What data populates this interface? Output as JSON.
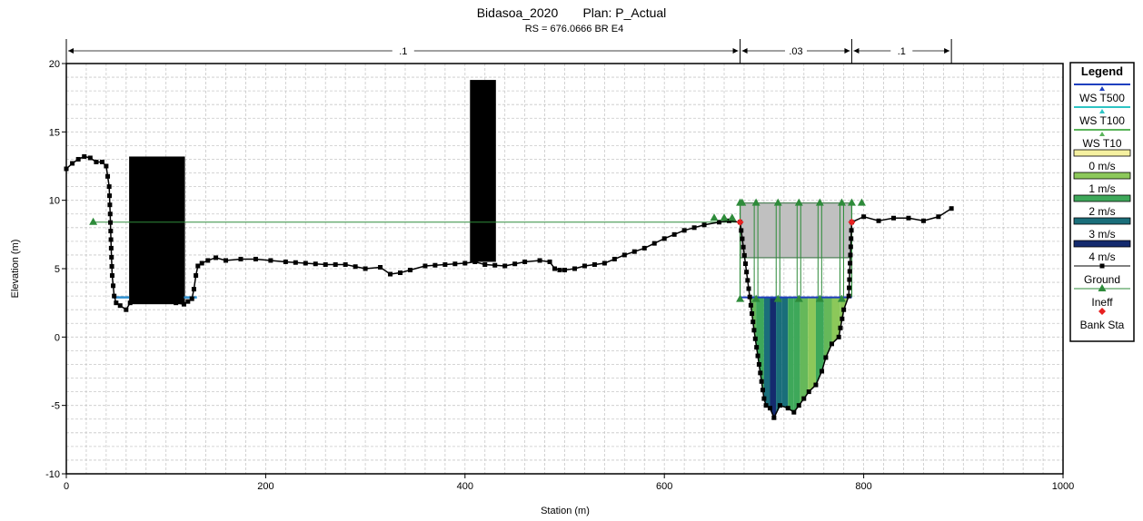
{
  "chart_data": {
    "type": "line",
    "title": "Bidasoa_2020       Plan: P_Actual",
    "subtitle": "RS = 676.0666 BR  E4",
    "xlabel": "Station (m)",
    "ylabel": "Elevation (m)",
    "xlim": [
      0,
      1000
    ],
    "ylim": [
      -10,
      20
    ],
    "x_ticks": [
      "0",
      "200",
      "400",
      "600",
      "800",
      "1000"
    ],
    "y_ticks": [
      "20",
      "15",
      "10",
      "5",
      "0",
      "-5",
      "-10"
    ],
    "grid": true,
    "legend_position": "right",
    "legend_title": "Legend",
    "legend": [
      {
        "label": "WS T500",
        "kind": "line",
        "color": "#1f3fbf"
      },
      {
        "label": "WS T100",
        "kind": "line",
        "color": "#2ec4c4"
      },
      {
        "label": "WS T10",
        "kind": "line",
        "color": "#5ab45a"
      },
      {
        "label": "0 m/s",
        "kind": "box",
        "color": "#f5f0a0"
      },
      {
        "label": "1 m/s",
        "kind": "box",
        "color": "#8cc85a"
      },
      {
        "label": "2 m/s",
        "kind": "box",
        "color": "#3ea85a"
      },
      {
        "label": "3 m/s",
        "kind": "box",
        "color": "#1a6e7a"
      },
      {
        "label": "4 m/s",
        "kind": "box",
        "color": "#142a6e"
      },
      {
        "label": "Ground",
        "kind": "marker-line",
        "color": "#000000"
      },
      {
        "label": "Ineff",
        "kind": "triangle",
        "color": "#2e8b3a"
      },
      {
        "label": "Bank Sta",
        "kind": "diamond",
        "color": "#e82020"
      }
    ],
    "mannings_n": [
      {
        "label": ".1",
        "x_start": 0,
        "x_end": 676
      },
      {
        "label": ".03",
        "x_start": 676,
        "x_end": 788
      },
      {
        "label": ".1",
        "x_start": 788,
        "x_end": 888
      }
    ],
    "ground": {
      "name": "Ground",
      "x": [
        0,
        6,
        12,
        18,
        24,
        30,
        36,
        40,
        43,
        44,
        45,
        46,
        48,
        50,
        54,
        60,
        64,
        66,
        70,
        80,
        90,
        100,
        110,
        118,
        122,
        126,
        128,
        130,
        132,
        136,
        142,
        150,
        160,
        175,
        190,
        205,
        220,
        240,
        260,
        280,
        300,
        315,
        325,
        335,
        345,
        360,
        380,
        400,
        410,
        420,
        440,
        460,
        475,
        485,
        490,
        495,
        500,
        510,
        520,
        540,
        560,
        580,
        600,
        620,
        640,
        655,
        665,
        676,
        690,
        700,
        702,
        706,
        710,
        716,
        724,
        730,
        740,
        745,
        752,
        758,
        762,
        768,
        775,
        780,
        785,
        788,
        800,
        815,
        830,
        845,
        860,
        875,
        888
      ],
      "y": [
        12.3,
        12.7,
        13.0,
        13.2,
        13.1,
        12.8,
        12.8,
        12.5,
        11.0,
        9.0,
        6.5,
        4.5,
        3.0,
        2.5,
        2.3,
        2.0,
        2.5,
        2.6,
        2.6,
        2.6,
        2.6,
        2.6,
        2.5,
        2.4,
        2.6,
        2.8,
        3.5,
        4.5,
        5.2,
        5.4,
        5.6,
        5.8,
        5.6,
        5.7,
        5.7,
        5.6,
        5.5,
        5.4,
        5.3,
        5.3,
        5.0,
        5.1,
        4.6,
        4.7,
        4.9,
        5.2,
        5.3,
        5.4,
        5.5,
        5.3,
        5.2,
        5.5,
        5.6,
        5.5,
        5.0,
        4.9,
        4.9,
        5.0,
        5.2,
        5.4,
        6.0,
        6.5,
        7.2,
        7.8,
        8.2,
        8.4,
        8.5,
        8.4,
        0.5,
        -4.5,
        -5.0,
        -5.2,
        -5.9,
        -5.0,
        -5.2,
        -5.5,
        -4.5,
        -4.0,
        -3.5,
        -2.5,
        -1.5,
        -0.5,
        0.0,
        2.0,
        3.0,
        8.4,
        8.8,
        8.5,
        8.7,
        8.7,
        8.5,
        8.8,
        9.4
      ]
    },
    "ineffective_wse": 8.4,
    "ineffective_x": [
      25,
      676
    ],
    "bank_stations": [
      676,
      788
    ],
    "bridge": {
      "deck_x": [
        676,
        788
      ],
      "high_chord": 9.8,
      "low_chord": 5.8,
      "water_surface": 2.9,
      "piers_x": [
        692,
        714,
        735,
        756,
        778
      ]
    },
    "obstructions": [
      {
        "x": [
          63,
          119
        ],
        "y": [
          2.4,
          13.2
        ]
      },
      {
        "x": [
          405,
          431
        ],
        "y": [
          5.5,
          18.8
        ]
      }
    ],
    "pool_lines": [
      {
        "x": [
          47,
          63
        ],
        "y": 2.9
      },
      {
        "x": [
          118,
          131
        ],
        "y": 2.9
      }
    ],
    "velocity_slices": {
      "x": [
        676,
        680,
        686,
        692,
        700,
        706,
        712,
        718,
        724,
        730,
        736,
        744,
        752,
        760,
        768,
        776,
        782,
        788
      ],
      "v": [
        1,
        1,
        1.5,
        2,
        3,
        4,
        3,
        3,
        2,
        2,
        1.5,
        1,
        2,
        1.5,
        1,
        1,
        1
      ]
    }
  }
}
